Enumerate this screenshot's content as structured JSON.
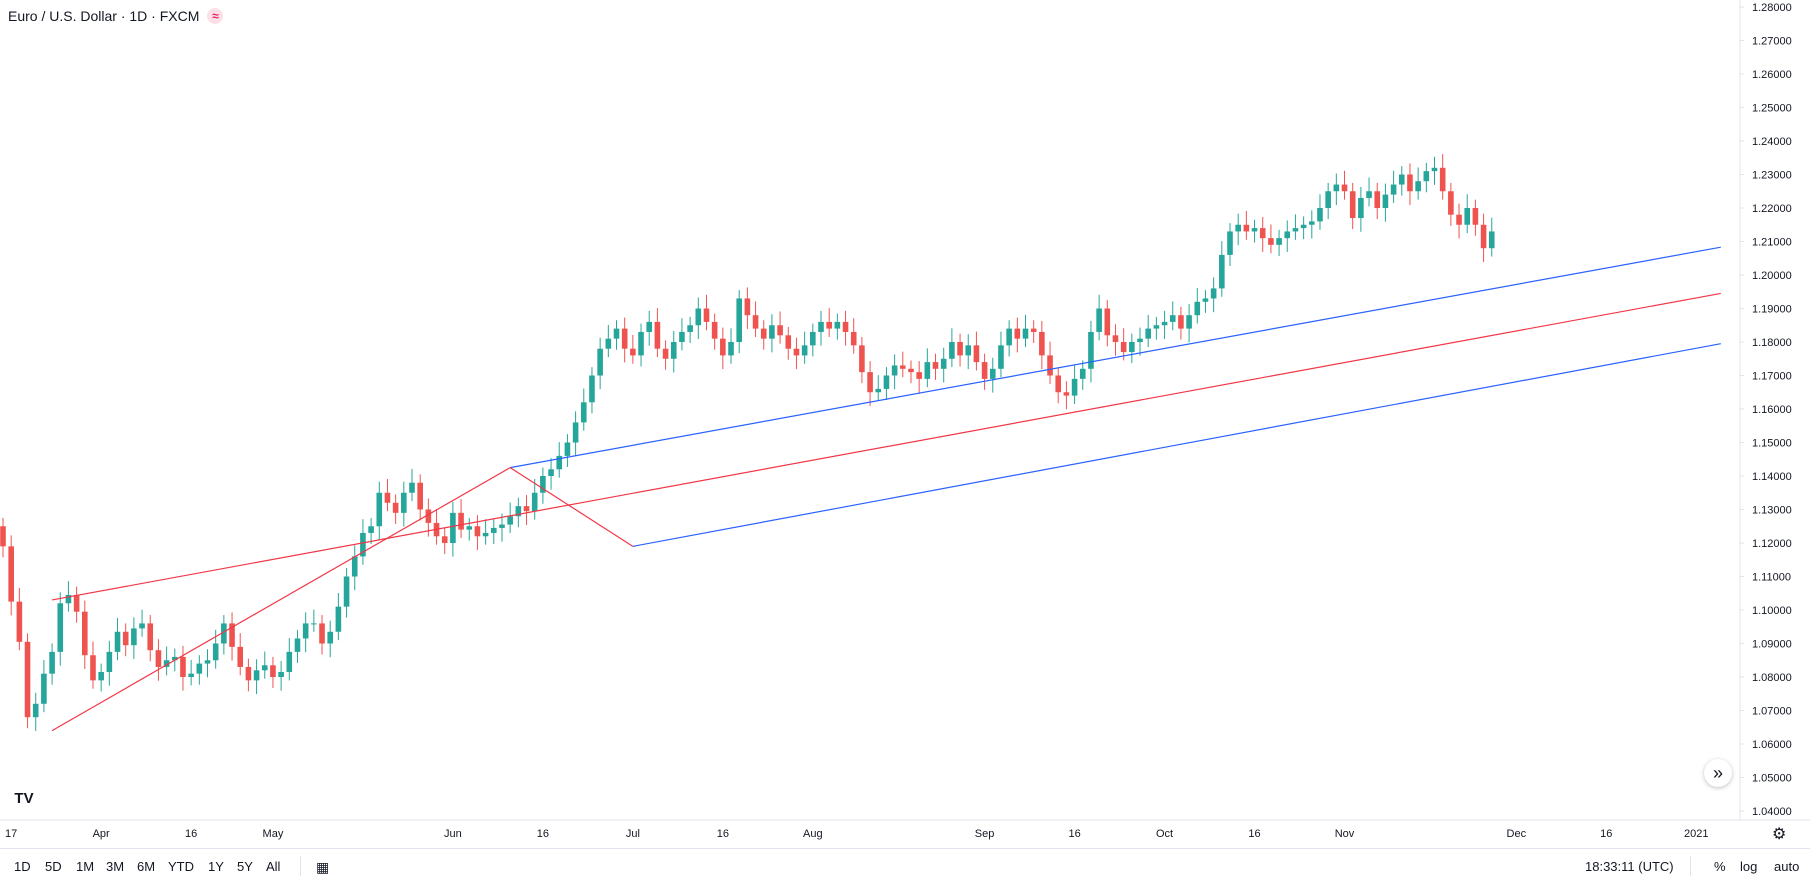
{
  "header": {
    "symbol_title": "Euro / U.S. Dollar · 1D · FXCM",
    "badge_icon": "≈"
  },
  "range_buttons": [
    "1D",
    "5D",
    "1M",
    "3M",
    "6M",
    "YTD",
    "1Y",
    "5Y",
    "All"
  ],
  "footer": {
    "clock": "18:33:11 (UTC)",
    "percent_label": "%",
    "log_label": "log",
    "auto_label": "auto"
  },
  "icons": {
    "logo": "tradingview-logo-icon",
    "scroll": "scroll-to-realtime-icon",
    "settings": "gear-icon",
    "date_range": "calendar-icon"
  },
  "colors": {
    "up": "#26a69a",
    "down": "#ef5350",
    "trendline_blue": "#2962ff",
    "trendline_red": "#f23645",
    "grid": "#e0e3eb"
  },
  "chart_data": {
    "type": "candlestick",
    "title": "Euro / U.S. Dollar · 1D · FXCM",
    "xlabel": "",
    "ylabel": "",
    "ylim": [
      1.035,
      1.28
    ],
    "grid": false,
    "y_ticks": [
      "1.28000",
      "1.27000",
      "1.26000",
      "1.25000",
      "1.24000",
      "1.23000",
      "1.22000",
      "1.21000",
      "1.20000",
      "1.19000",
      "1.18000",
      "1.17000",
      "1.16000",
      "1.15000",
      "1.14000",
      "1.13000",
      "1.12000",
      "1.11000",
      "1.10000",
      "1.09000",
      "1.08000",
      "1.07000",
      "1.06000",
      "1.05000",
      "1.04000"
    ],
    "x_ticks": [
      {
        "label": "17",
        "idx": 1
      },
      {
        "label": "Apr",
        "idx": 12
      },
      {
        "label": "16",
        "idx": 23
      },
      {
        "label": "May",
        "idx": 33
      },
      {
        "label": "Jun",
        "idx": 55
      },
      {
        "label": "16",
        "idx": 66
      },
      {
        "label": "Jul",
        "idx": 77
      },
      {
        "label": "16",
        "idx": 88
      },
      {
        "label": "Aug",
        "idx": 99
      },
      {
        "label": "Sep",
        "idx": 120
      },
      {
        "label": "16",
        "idx": 131
      },
      {
        "label": "Oct",
        "idx": 142
      },
      {
        "label": "16",
        "idx": 153
      },
      {
        "label": "Nov",
        "idx": 164
      },
      {
        "label": "Dec",
        "idx": 185
      },
      {
        "label": "16",
        "idx": 196
      },
      {
        "label": "2021",
        "idx": 207
      }
    ],
    "closes": [
      1.119,
      1.1025,
      1.0905,
      1.068,
      1.072,
      1.081,
      1.0875,
      1.102,
      1.1045,
      1.0995,
      1.0865,
      1.079,
      1.0815,
      1.0875,
      1.0935,
      1.0895,
      1.0945,
      1.096,
      1.088,
      1.083,
      1.085,
      1.086,
      1.08,
      1.081,
      1.084,
      1.085,
      1.09,
      1.096,
      1.089,
      1.083,
      1.079,
      1.082,
      1.0835,
      1.08,
      1.0815,
      1.0875,
      1.0915,
      1.096,
      1.096,
      1.09,
      1.0935,
      1.101,
      1.11,
      1.116,
      1.123,
      1.125,
      1.135,
      1.132,
      1.129,
      1.135,
      1.138,
      1.13,
      1.126,
      1.122,
      1.12,
      1.129,
      1.124,
      1.125,
      1.122,
      1.123,
      1.1245,
      1.1255,
      1.128,
      1.131,
      1.1295,
      1.135,
      1.14,
      1.142,
      1.146,
      1.15,
      1.156,
      1.162,
      1.17,
      1.178,
      1.181,
      1.184,
      1.178,
      1.176,
      1.183,
      1.186,
      1.178,
      1.175,
      1.18,
      1.183,
      1.185,
      1.19,
      1.186,
      1.181,
      1.176,
      1.18,
      1.193,
      1.188,
      1.184,
      1.181,
      1.185,
      1.182,
      1.178,
      1.176,
      1.179,
      1.183,
      1.186,
      1.184,
      1.186,
      1.183,
      1.179,
      1.171,
      1.165,
      1.166,
      1.17,
      1.173,
      1.172,
      1.171,
      1.169,
      1.174,
      1.172,
      1.175,
      1.18,
      1.176,
      1.179,
      1.174,
      1.169,
      1.172,
      1.179,
      1.184,
      1.181,
      1.184,
      1.183,
      1.176,
      1.17,
      1.165,
      1.164,
      1.169,
      1.172,
      1.183,
      1.19,
      1.182,
      1.18,
      1.177,
      1.18,
      1.181,
      1.184,
      1.185,
      1.186,
      1.188,
      1.184,
      1.188,
      1.192,
      1.193,
      1.196,
      1.206,
      1.213,
      1.215,
      1.213,
      1.214,
      1.211,
      1.209,
      1.211,
      1.213,
      1.214,
      1.215,
      1.216,
      1.22,
      1.225,
      1.227,
      1.225,
      1.217,
      1.223,
      1.225,
      1.22,
      1.224,
      1.227,
      1.23,
      1.225,
      1.228,
      1.231,
      1.232,
      1.225,
      1.218,
      1.215,
      1.22,
      1.215,
      1.208,
      1.213
    ],
    "trendlines": [
      {
        "color": "blue",
        "from": {
          "idx": 62,
          "price": 1.1425
        },
        "to": {
          "idx": 210,
          "price": 1.2083
        }
      },
      {
        "color": "blue",
        "from": {
          "idx": 77,
          "price": 1.119
        },
        "to": {
          "idx": 210,
          "price": 1.1795
        }
      },
      {
        "color": "red",
        "from": {
          "idx": 6,
          "price": 1.103
        },
        "to": {
          "idx": 210,
          "price": 1.1945
        }
      },
      {
        "color": "red",
        "from": {
          "idx": 6,
          "price": 1.064
        },
        "to": {
          "idx": 62,
          "price": 1.1425
        }
      },
      {
        "color": "red",
        "from": {
          "idx": 62,
          "price": 1.1425
        },
        "to": {
          "idx": 77,
          "price": 1.119
        }
      }
    ]
  }
}
